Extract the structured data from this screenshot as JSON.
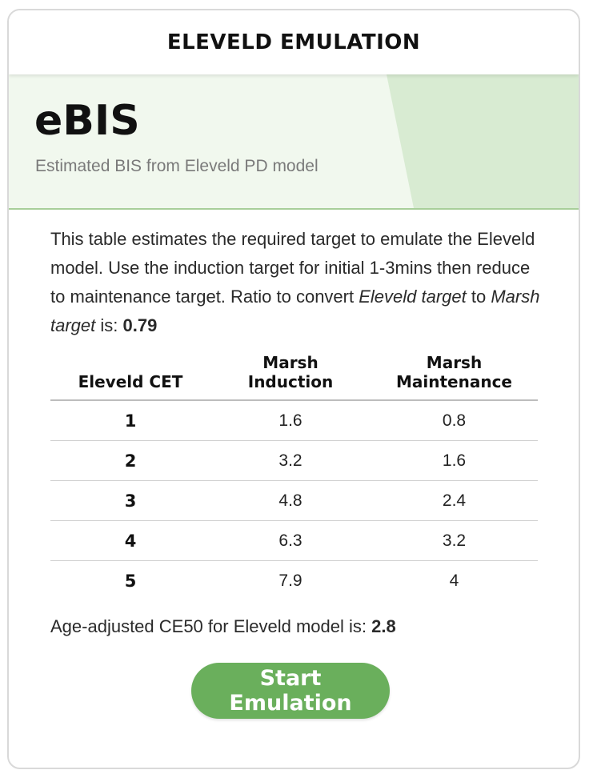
{
  "header": {
    "title": "ELEVELD EMULATION"
  },
  "hero": {
    "title": "eBIS",
    "subtitle": "Estimated BIS from Eleveld PD model"
  },
  "description": {
    "text_1": "This table estimates the required target to emulate the Eleveld model. Use the induction target for initial 1-3mins then reduce to maintenance target. Ratio to convert ",
    "italic_1": "Eleveld target",
    "text_2": " to ",
    "italic_2": "Marsh target",
    "text_3": " is: ",
    "ratio_value": "0.79"
  },
  "table": {
    "headers": {
      "col1": "Eleveld CET",
      "col2_line1": "Marsh",
      "col2_line2": "Induction",
      "col3_line1": "Marsh",
      "col3_line2": "Maintenance"
    },
    "rows": [
      {
        "cet": "1",
        "induction": "1.6",
        "maintenance": "0.8"
      },
      {
        "cet": "2",
        "induction": "3.2",
        "maintenance": "1.6"
      },
      {
        "cet": "3",
        "induction": "4.8",
        "maintenance": "2.4"
      },
      {
        "cet": "4",
        "induction": "6.3",
        "maintenance": "3.2"
      },
      {
        "cet": "5",
        "induction": "7.9",
        "maintenance": "4"
      }
    ]
  },
  "ce50": {
    "label": "Age-adjusted CE50 for Eleveld model is: ",
    "value": "2.8"
  },
  "button": {
    "label": "Start Emulation"
  },
  "colors": {
    "accent_green": "#6aaf5c",
    "hero_background": "#f1f8ee",
    "hero_shade": "#d8ebd2",
    "hero_border": "#a8cf9a"
  }
}
